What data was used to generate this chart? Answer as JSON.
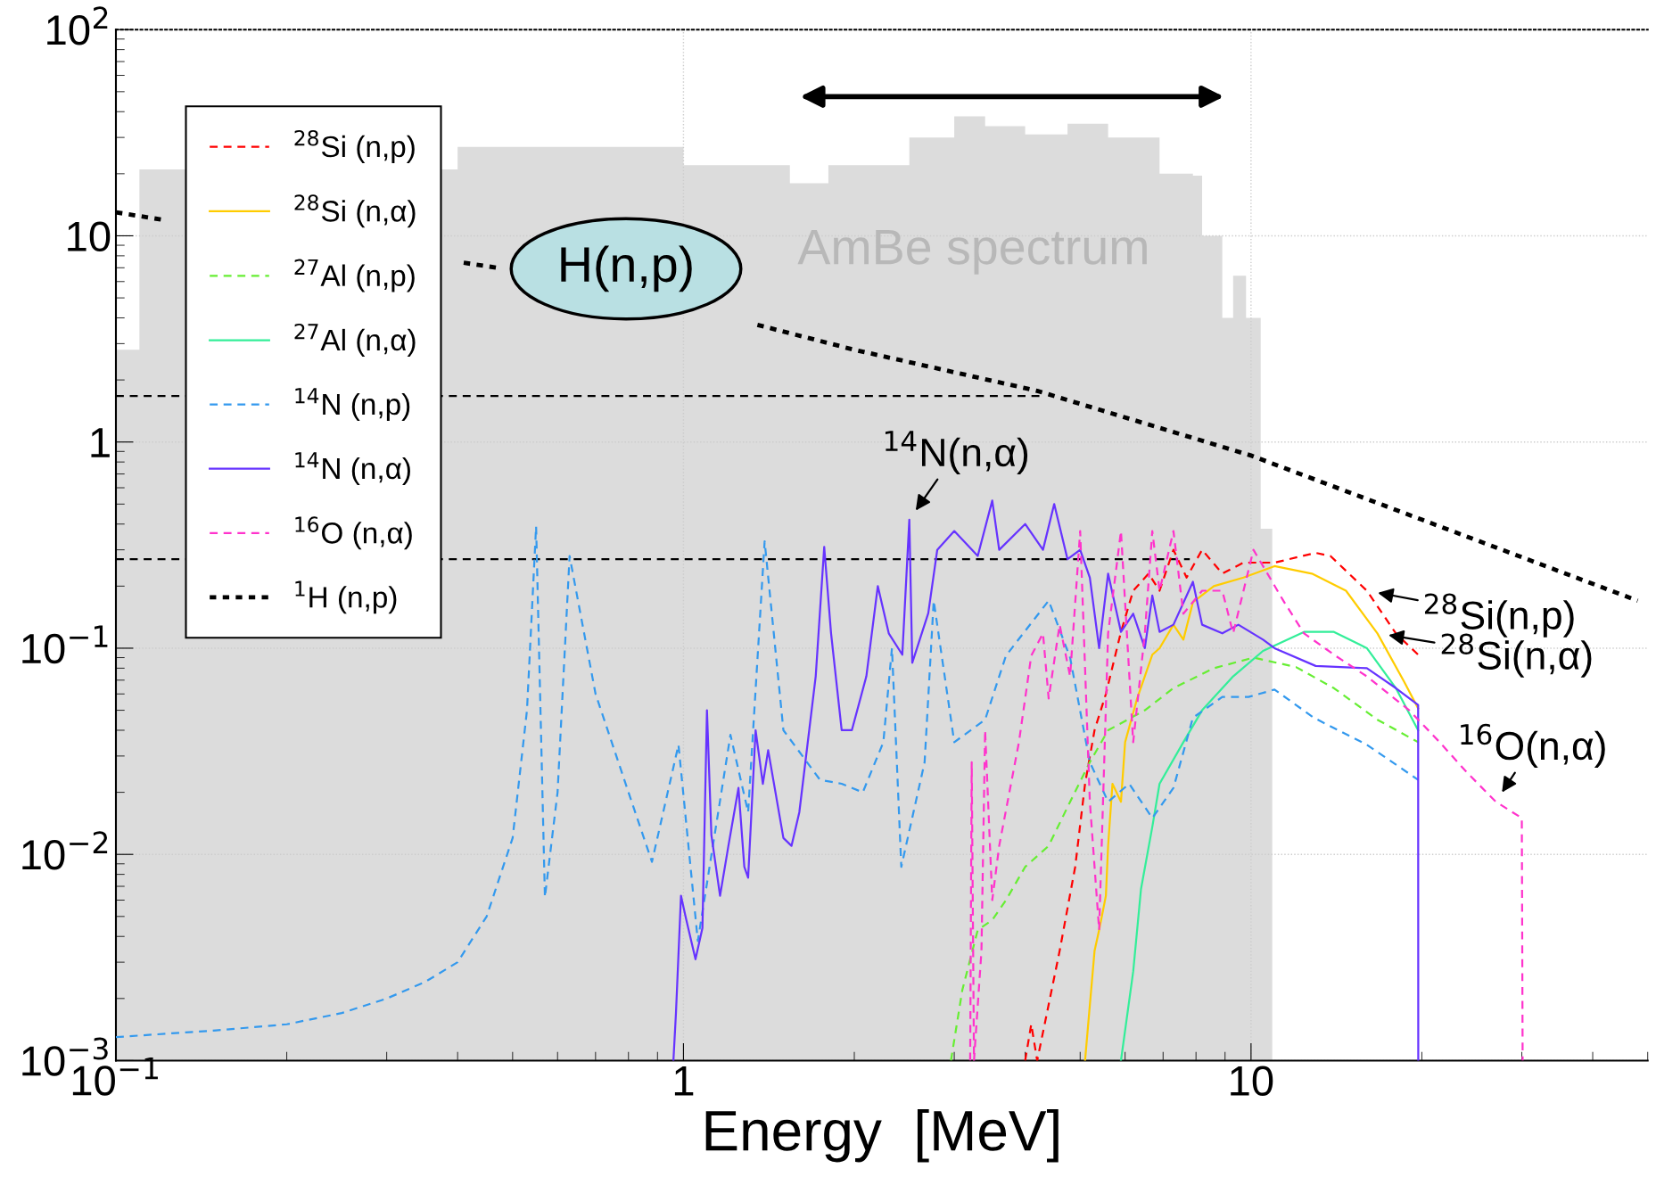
{
  "chart_data": {
    "type": "line",
    "xlabel": "Energy  [MeV]",
    "log": "xy",
    "xlim": [
      0.1,
      50
    ],
    "ylim": [
      0.001,
      100
    ],
    "xticks": [
      {
        "value": 0.1,
        "label": "10$^{−1}$"
      },
      1,
      10
    ],
    "yticks": [
      {
        "value": 0.001,
        "label": "10$^{−3}$"
      },
      {
        "value": 0.01,
        "label": "10$^{−2}$"
      },
      {
        "value": 0.1,
        "label": "10$^{−1}$"
      },
      1,
      10,
      {
        "value": 100,
        "label": "10$^{2}$"
      }
    ],
    "grid": true,
    "legend": "top left",
    "series": [
      {
        "type": "histogram",
        "color": "#dcdcdc",
        "bins": [
          0.1,
          0.11,
          0.4,
          1.0,
          1.54,
          1.8,
          2.5,
          3.0,
          3.4,
          4.0,
          4.75,
          5.6,
          6.9,
          7.9,
          8.2,
          8.9,
          9.3,
          9.8,
          10.4,
          10.9
        ],
        "values": [
          2.8,
          21,
          27,
          22,
          18,
          22,
          30,
          38,
          34,
          31,
          35,
          30,
          20,
          19.6,
          10,
          4.0,
          6.4,
          4.0,
          0.38
        ]
      },
      {
        "type": "line",
        "color": "#000000",
        "line_style": "dashed",
        "x": [
          0.1,
          4.3
        ],
        "values": [
          1.67,
          1.67
        ]
      },
      {
        "type": "line",
        "color": "#000000",
        "line_style": "dashed",
        "x": [
          0.1,
          7.8
        ],
        "values": [
          0.27,
          0.27
        ]
      },
      {
        "name": "$^{28}$Si (n,p)",
        "color": "#ff0000",
        "line_style": "dashed",
        "x": [
          4.0,
          4.1,
          4.2,
          4.6,
          4.9,
          5.1,
          5.3,
          5.55,
          5.9,
          6.2,
          6.6,
          6.9,
          7.3,
          7.7,
          8.2,
          8.9,
          9.7,
          11,
          13,
          13.8,
          16,
          18,
          19.7
        ],
        "values": [
          0.001,
          0.0015,
          0.001,
          0.0034,
          0.0087,
          0.022,
          0.04,
          0.06,
          0.12,
          0.19,
          0.23,
          0.19,
          0.3,
          0.22,
          0.3,
          0.23,
          0.26,
          0.26,
          0.29,
          0.28,
          0.19,
          0.118,
          0.093
        ]
      },
      {
        "name": "$^{28}$Si (n,α)",
        "color": "#ffcc00",
        "line_style": "solid",
        "x": [
          5.1,
          5.3,
          5.4,
          5.55,
          5.6,
          5.7,
          5.9,
          6.0,
          6.3,
          6.7,
          6.9,
          7.3,
          7.6,
          7.9,
          8.6,
          9.7,
          11,
          12.8,
          14.7,
          16.7,
          18.6,
          19.7
        ],
        "values": [
          0.001,
          0.0034,
          0.0043,
          0.0063,
          0.011,
          0.022,
          0.018,
          0.035,
          0.057,
          0.093,
          0.1,
          0.13,
          0.11,
          0.167,
          0.2,
          0.22,
          0.25,
          0.23,
          0.19,
          0.118,
          0.069,
          0.051
        ]
      },
      {
        "name": "$^{27}$Al (n,p)",
        "color": "#66ee33",
        "line_style": "dashed",
        "x": [
          2.96,
          3.1,
          3.3,
          3.5,
          3.7,
          4.0,
          4.4,
          4.8,
          5.2,
          5.6,
          6.5,
          7.3,
          8.6,
          10.1,
          12,
          14,
          16.7,
          19.7
        ],
        "values": [
          0.001,
          0.0022,
          0.0043,
          0.0048,
          0.006,
          0.0087,
          0.011,
          0.018,
          0.028,
          0.04,
          0.05,
          0.064,
          0.08,
          0.09,
          0.081,
          0.064,
          0.045,
          0.035
        ]
      },
      {
        "name": "$^{27}$Al (n,α)",
        "color": "#33ee99",
        "line_style": "solid",
        "x": [
          5.9,
          6.2,
          6.4,
          6.7,
          6.9,
          7.6,
          8.2,
          9.3,
          10.5,
          12.4,
          14,
          16,
          18,
          19.7
        ],
        "values": [
          0.001,
          0.0027,
          0.0068,
          0.0136,
          0.022,
          0.035,
          0.05,
          0.073,
          0.097,
          0.12,
          0.12,
          0.1,
          0.064,
          0.04
        ]
      },
      {
        "name": "$^{14}$N (n,p)",
        "color": "#3399ee",
        "line_style": "dashed",
        "x": [
          0.1,
          0.15,
          0.2,
          0.25,
          0.3,
          0.35,
          0.4,
          0.45,
          0.5,
          0.53,
          0.55,
          0.57,
          0.6,
          0.63,
          0.7,
          0.8,
          0.88,
          0.98,
          1.06,
          1.21,
          1.3,
          1.39,
          1.5,
          1.74,
          1.9,
          2.07,
          2.25,
          2.33,
          2.42,
          2.66,
          2.76,
          3.0,
          3.4,
          3.7,
          4.4,
          4.8,
          5.2,
          5.6,
          6.1,
          6.7,
          7.3,
          7.9,
          8.9,
          9.9,
          11,
          12.9,
          16,
          19.7
        ],
        "values": [
          0.0013,
          0.0014,
          0.0015,
          0.0017,
          0.002,
          0.0024,
          0.003,
          0.005,
          0.012,
          0.05,
          0.39,
          0.0062,
          0.02,
          0.28,
          0.06,
          0.02,
          0.0092,
          0.034,
          0.0038,
          0.038,
          0.016,
          0.33,
          0.04,
          0.023,
          0.022,
          0.02,
          0.035,
          0.1,
          0.0087,
          0.028,
          0.17,
          0.035,
          0.045,
          0.092,
          0.17,
          0.09,
          0.028,
          0.018,
          0.022,
          0.015,
          0.021,
          0.046,
          0.058,
          0.058,
          0.063,
          0.046,
          0.034,
          0.023
        ]
      },
      {
        "name": "$^{14}$N (n,α)",
        "color": "#6633ff",
        "line_style": "solid",
        "x": [
          0.96,
          0.97,
          0.99,
          1.01,
          1.05,
          1.08,
          1.1,
          1.12,
          1.16,
          1.2,
          1.25,
          1.28,
          1.3,
          1.34,
          1.38,
          1.41,
          1.5,
          1.55,
          1.6,
          1.71,
          1.77,
          1.82,
          1.9,
          1.98,
          2.1,
          2.2,
          2.3,
          2.43,
          2.5,
          2.53,
          2.7,
          2.8,
          3.0,
          3.3,
          3.5,
          3.6,
          4.0,
          4.3,
          4.5,
          4.75,
          5.0,
          5.2,
          5.4,
          5.6,
          5.9,
          6.2,
          6.5,
          6.7,
          6.9,
          7.3,
          7.9,
          8.2,
          8.9,
          9.5,
          10.5,
          11,
          13,
          16,
          18,
          19.7,
          19.71
        ],
        "values": [
          0.001,
          0.0017,
          0.0063,
          0.0049,
          0.0031,
          0.0044,
          0.05,
          0.0124,
          0.0063,
          0.011,
          0.021,
          0.0087,
          0.0077,
          0.04,
          0.022,
          0.032,
          0.012,
          0.011,
          0.016,
          0.073,
          0.31,
          0.118,
          0.04,
          0.04,
          0.073,
          0.2,
          0.118,
          0.093,
          0.42,
          0.085,
          0.148,
          0.3,
          0.37,
          0.28,
          0.52,
          0.3,
          0.4,
          0.3,
          0.5,
          0.27,
          0.3,
          0.22,
          0.1,
          0.23,
          0.12,
          0.147,
          0.1,
          0.18,
          0.12,
          0.13,
          0.21,
          0.13,
          0.118,
          0.13,
          0.11,
          0.1,
          0.082,
          0.08,
          0.064,
          0.053,
          0.001
        ]
      },
      {
        "name": "$^{16}$O (n,α)",
        "color": "#ff33cc",
        "line_style": "dashed",
        "x": [
          3.2,
          3.22,
          3.25,
          3.35,
          3.4,
          3.5,
          3.6,
          3.9,
          4.1,
          4.3,
          4.4,
          4.6,
          4.8,
          5.0,
          5.2,
          5.4,
          5.6,
          5.9,
          6.2,
          6.5,
          6.7,
          6.9,
          7.3,
          7.6,
          8.2,
          8.9,
          9.3,
          10.1,
          11.4,
          12.4,
          14,
          16,
          19,
          21.5,
          24,
          27,
          30,
          30.1
        ],
        "values": [
          0.001,
          0.028,
          0.001,
          0.0034,
          0.04,
          0.006,
          0.011,
          0.035,
          0.092,
          0.118,
          0.057,
          0.13,
          0.073,
          0.37,
          0.018,
          0.0043,
          0.118,
          0.37,
          0.035,
          0.118,
          0.37,
          0.19,
          0.37,
          0.147,
          0.19,
          0.19,
          0.118,
          0.3,
          0.17,
          0.118,
          0.093,
          0.073,
          0.05,
          0.035,
          0.025,
          0.018,
          0.015,
          0.001
        ]
      },
      {
        "name": "$^{1}$H (n,p)",
        "color": "#000000",
        "line_style": "dotted",
        "x": [
          0.1,
          0.12,
          0.25,
          0.41,
          0.47,
          0.8,
          1.35,
          2,
          4.2,
          10,
          20,
          48
        ],
        "values": [
          13,
          12,
          null,
          7.4,
          7.0,
          null,
          3.7,
          2.8,
          1.77,
          0.86,
          0.42,
          0.17
        ]
      }
    ],
    "annotations": [
      "H(n,p)",
      "AmBe spectrum",
      {
        "text": "$^{14}$N(n,α)",
        "x": 2.5,
        "y": 0.42
      },
      {
        "text": "$^{28}$Si(n,p)",
        "x": 16,
        "y": 0.19
      },
      {
        "text": "$^{28}$Si(n,α)",
        "x": 16.7,
        "y": 0.118
      },
      {
        "text": "$^{16}$O(n,α)",
        "x": 27,
        "y": 0.018
      }
    ]
  }
}
